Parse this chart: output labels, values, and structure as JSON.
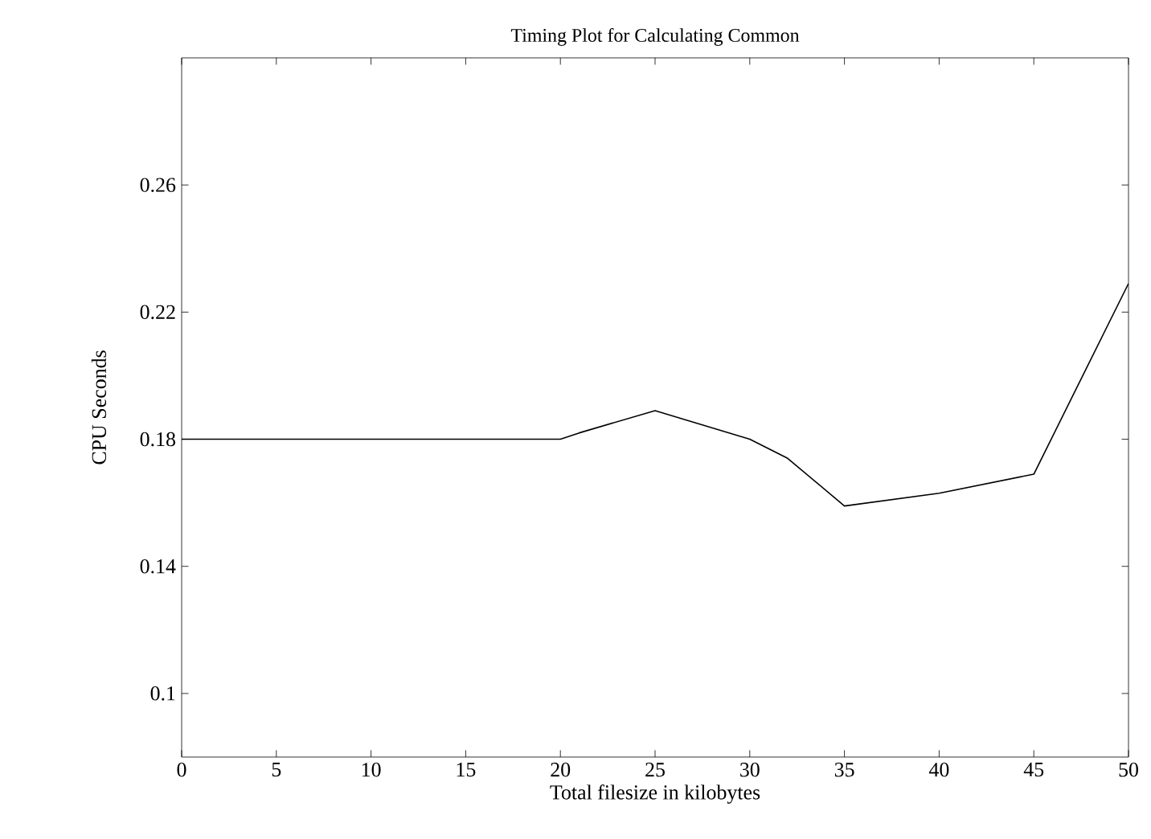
{
  "chart_data": {
    "type": "line",
    "title": "Timing Plot for Calculating Common",
    "xlabel": "Total filesize in kilobytes",
    "ylabel": "CPU Seconds",
    "x": [
      0,
      5,
      10,
      15,
      20,
      21,
      25,
      30,
      32,
      35,
      40,
      45,
      50
    ],
    "series": [
      {
        "color": "#000000",
        "values": [
          0.18,
          0.18,
          0.18,
          0.18,
          0.18,
          0.182,
          0.189,
          0.18,
          0.174,
          0.159,
          0.163,
          0.169,
          0.229
        ]
      }
    ],
    "xlim": [
      0,
      50
    ],
    "ylim": [
      0.08,
      0.3
    ],
    "xticks": [
      0,
      5,
      10,
      15,
      20,
      25,
      30,
      35,
      40,
      45,
      50
    ],
    "yticks": [
      0.1,
      0.14,
      0.18,
      0.22,
      0.26
    ],
    "grid": false,
    "marker": "none",
    "line_style": "solid"
  }
}
